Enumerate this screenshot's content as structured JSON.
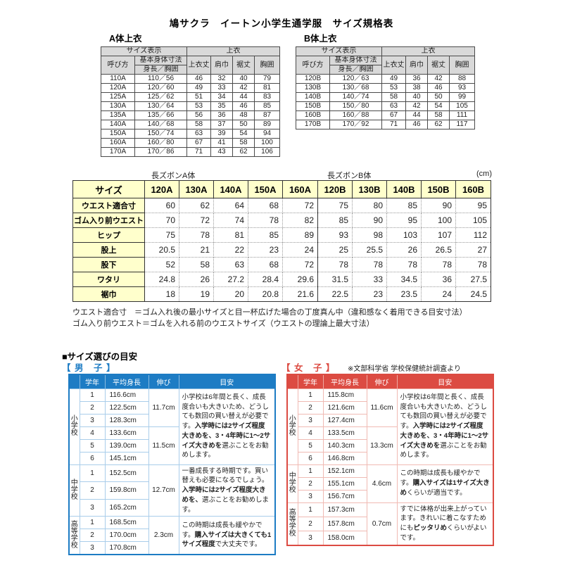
{
  "title": "鳩サクラ　イートン小学生通学服　サイズ規格表",
  "colors": {
    "boys": "#1d7cc4",
    "girls": "#dc4b42",
    "header_yellow": "#ffffcc",
    "header_gray": "#d9d9d9"
  },
  "spec_header": {
    "size_display": "サイズ表示",
    "jacket_group": "上衣",
    "call_name": "呼び方",
    "base_dims": "基本身体寸法",
    "base_sub": "身長／胸囲",
    "cols": [
      "上衣丈",
      "肩巾",
      "裾丈",
      "胸囲"
    ]
  },
  "tops_a": {
    "label": "A体上衣",
    "rows": [
      [
        "110A",
        "110／56",
        "46",
        "32",
        "40",
        "79"
      ],
      [
        "120A",
        "120／60",
        "49",
        "33",
        "42",
        "81"
      ],
      [
        "125A",
        "125／62",
        "51",
        "34",
        "44",
        "83"
      ],
      [
        "130A",
        "130／64",
        "53",
        "35",
        "46",
        "85"
      ],
      [
        "135A",
        "135／66",
        "56",
        "36",
        "48",
        "87"
      ],
      [
        "140A",
        "140／68",
        "58",
        "37",
        "50",
        "89"
      ],
      [
        "150A",
        "150／74",
        "63",
        "39",
        "54",
        "94"
      ],
      [
        "160A",
        "160／80",
        "67",
        "41",
        "58",
        "100"
      ],
      [
        "170A",
        "170／86",
        "71",
        "43",
        "62",
        "106"
      ]
    ]
  },
  "tops_b": {
    "label": "B体上衣",
    "rows": [
      [
        "120B",
        "120／63",
        "49",
        "36",
        "42",
        "88"
      ],
      [
        "130B",
        "130／68",
        "53",
        "38",
        "46",
        "93"
      ],
      [
        "140B",
        "140／74",
        "58",
        "40",
        "50",
        "99"
      ],
      [
        "150B",
        "150／80",
        "63",
        "42",
        "54",
        "105"
      ],
      [
        "160B",
        "160／88",
        "67",
        "44",
        "58",
        "111"
      ],
      [
        "170B",
        "170／92",
        "71",
        "46",
        "62",
        "117"
      ]
    ]
  },
  "pants": {
    "label_a": "長ズボンA体",
    "label_b": "長ズボンB体",
    "unit": "(cm)",
    "header": [
      "サイズ",
      "120A",
      "130A",
      "140A",
      "150A",
      "160A",
      "120B",
      "130B",
      "140B",
      "150B",
      "160B"
    ],
    "rows": [
      {
        "label": "ウエスト適合寸",
        "values": [
          "60",
          "62",
          "64",
          "68",
          "72",
          "75",
          "80",
          "85",
          "90",
          "95"
        ]
      },
      {
        "label": "ゴム入り前ウエスト",
        "values": [
          "70",
          "72",
          "74",
          "78",
          "82",
          "85",
          "90",
          "95",
          "100",
          "105"
        ]
      },
      {
        "label": "ヒップ",
        "values": [
          "75",
          "78",
          "81",
          "85",
          "89",
          "93",
          "98",
          "103",
          "107",
          "112"
        ]
      },
      {
        "label": "股上",
        "values": [
          "20.5",
          "21",
          "22",
          "23",
          "24",
          "25",
          "25.5",
          "26",
          "26.5",
          "27"
        ]
      },
      {
        "label": "股下",
        "values": [
          "52",
          "58",
          "63",
          "68",
          "72",
          "78",
          "78",
          "78",
          "78",
          "78"
        ]
      },
      {
        "label": "ワタリ",
        "values": [
          "24.8",
          "26",
          "27.2",
          "28.4",
          "29.6",
          "31.5",
          "33",
          "34.5",
          "36",
          "27.5"
        ]
      },
      {
        "label": "裾巾",
        "values": [
          "18",
          "19",
          "20",
          "20.8",
          "21.6",
          "22.5",
          "23",
          "23.5",
          "24",
          "24.5"
        ]
      }
    ]
  },
  "notes": [
    "ウエスト適合寸　＝ゴム入れ後の最小サイズと目一杯広げた場合の丁度真ん中（違和感なく着用できる目安寸法）",
    "ゴム入り前ウエスト＝ゴムを入れる前のウエストサイズ（ウエストの理論上最大寸法）"
  ],
  "guide": {
    "heading": "■サイズ選びの目安",
    "columns": [
      "学年",
      "平均身長",
      "伸び",
      "目安"
    ],
    "boys": {
      "label": "【 男　子 】",
      "groups": [
        {
          "school": "小学校",
          "grades": [
            "1",
            "2",
            "3",
            "4",
            "5",
            "6"
          ],
          "heights": [
            "116.6cm",
            "122.5cm",
            "128.3cm",
            "133.6cm",
            "139.0cm",
            "145.1cm"
          ],
          "growth": [
            {
              "rows": 3,
              "value": "11.7cm"
            },
            {
              "rows": 3,
              "value": "11.5cm"
            }
          ],
          "note": [
            {
              "bold": false,
              "text": "小学校は6年間と長く、成長度合いも大きいため、どうしても数回の買い替えが必要です。"
            },
            {
              "bold": true,
              "text": "入学時には2サイズ程度大きめを、3・4年時に1〜2サイズ大きめを"
            },
            {
              "bold": false,
              "text": "選ぶことをお勧めします。"
            }
          ]
        },
        {
          "school": "中学校",
          "grades": [
            "1",
            "2",
            "3"
          ],
          "heights": [
            "152.5cm",
            "159.8cm",
            "165.2cm"
          ],
          "growth": [
            {
              "rows": 3,
              "value": "12.7cm"
            }
          ],
          "note": [
            {
              "bold": false,
              "text": "一番成長する時期です。買い替えも必要になるでしょう。"
            },
            {
              "bold": true,
              "text": "入学時には2サイズ程度大きめを、"
            },
            {
              "bold": false,
              "text": "選ぶことをお勧めします。"
            }
          ]
        },
        {
          "school": "高等学校",
          "grades": [
            "1",
            "2",
            "3"
          ],
          "heights": [
            "168.5cm",
            "170.0cm",
            "170.8cm"
          ],
          "growth": [
            {
              "rows": 3,
              "value": "2.3cm"
            }
          ],
          "note": [
            {
              "bold": false,
              "text": "この時期は成長も緩やかです。"
            },
            {
              "bold": true,
              "text": "購入サイズは大きくても1サイズ程度"
            },
            {
              "bold": false,
              "text": "で大丈夫です。"
            }
          ]
        }
      ]
    },
    "girls": {
      "label": "【 女　子 】",
      "source_note": "※文部科学省 学校保健統計調査より",
      "groups": [
        {
          "school": "小学校",
          "grades": [
            "1",
            "2",
            "3",
            "4",
            "5",
            "6"
          ],
          "heights": [
            "115.8cm",
            "121.6cm",
            "127.4cm",
            "133.5cm",
            "140.3cm",
            "146.8cm"
          ],
          "growth": [
            {
              "rows": 3,
              "value": "11.6cm"
            },
            {
              "rows": 3,
              "value": "13.3cm"
            }
          ],
          "note": [
            {
              "bold": false,
              "text": "小学校は6年間と長く、成長度合いも大きいため、どうしても数回の買い替えが必要です。"
            },
            {
              "bold": true,
              "text": "入学時には2サイズ程度大きめを、3・4年時に1〜2サイズ大きめを"
            },
            {
              "bold": false,
              "text": "選ぶことをお勧めします。"
            }
          ]
        },
        {
          "school": "中学校",
          "grades": [
            "1",
            "2",
            "3"
          ],
          "heights": [
            "152.1cm",
            "155.1cm",
            "156.7cm"
          ],
          "growth": [
            {
              "rows": 3,
              "value": "4.6cm"
            }
          ],
          "note": [
            {
              "bold": false,
              "text": "この時期は成長も緩やかです。"
            },
            {
              "bold": true,
              "text": "購入サイズは1サイズ大きめ"
            },
            {
              "bold": false,
              "text": "くらいが適当です。"
            }
          ]
        },
        {
          "school": "高等学校",
          "grades": [
            "1",
            "2",
            "3"
          ],
          "heights": [
            "157.3cm",
            "157.8cm",
            "158.0cm"
          ],
          "growth": [
            {
              "rows": 3,
              "value": "0.7cm"
            }
          ],
          "note": [
            {
              "bold": false,
              "text": "すでに体格が出来上がっています。きれいに着こなすためにも"
            },
            {
              "bold": true,
              "text": "ピッタリめ"
            },
            {
              "bold": false,
              "text": "くらいがよいです。"
            }
          ]
        }
      ]
    }
  }
}
